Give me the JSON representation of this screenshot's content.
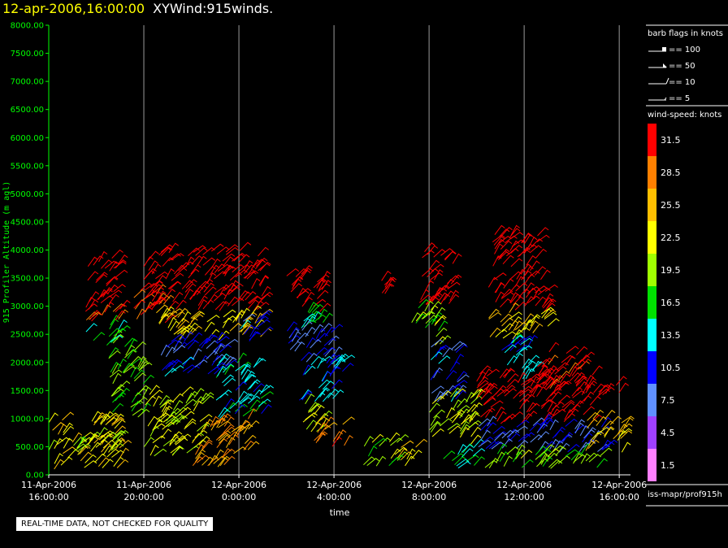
{
  "header": {
    "datetime": "12-apr-2006,16:00:00",
    "plot_name": "XYWind:915winds."
  },
  "legend": {
    "flags_title": "barb flags in knots",
    "flags": [
      "== 100",
      "== 50",
      "== 10",
      "== 5"
    ],
    "colorbar_title": "wind-speed: knots",
    "bins": [
      {
        "label": "31.5",
        "color": "#ff0000"
      },
      {
        "label": "28.5",
        "color": "#ff8000"
      },
      {
        "label": "25.5",
        "color": "#ffc000"
      },
      {
        "label": "22.5",
        "color": "#ffff00"
      },
      {
        "label": "19.5",
        "color": "#a0ff00"
      },
      {
        "label": "16.5",
        "color": "#00e000"
      },
      {
        "label": "13.5",
        "color": "#00ffff"
      },
      {
        "label": "10.5",
        "color": "#0000ff"
      },
      {
        "label": "7.5",
        "color": "#6090ff"
      },
      {
        "label": "4.5",
        "color": "#a040ff"
      },
      {
        "label": "1.5",
        "color": "#ff80ff"
      }
    ],
    "footer": "iss-mapr/prof915h"
  },
  "notice": "REAL-TIME DATA, NOT CHECKED FOR QUALITY",
  "chart_data": {
    "type": "scatter",
    "title": "12-apr-2006,16:00:00  XYWind:915winds.",
    "xlabel": "time",
    "ylabel": "915 Profiler Altitude (m agl)",
    "x_ticks": [
      "11-Apr-2006 16:00:00",
      "11-Apr-2006 20:00:00",
      "12-Apr-2006 0:00:00",
      "12-Apr-2006 4:00:00",
      "12-Apr-2006 8:00:00",
      "12-Apr-2006 12:00:00",
      "12-Apr-2006 16:00:00"
    ],
    "xlim_hours": [
      0,
      24.2
    ],
    "ylim": [
      0,
      8000
    ],
    "y_ticks": [
      "0.00",
      "500.00",
      "1000.00",
      "1500.00",
      "2000.00",
      "2500.00",
      "3000.00",
      "3500.00",
      "4000.00",
      "4500.00",
      "5000.00",
      "5500.00",
      "6000.00",
      "6500.00",
      "7000.00",
      "7500.00",
      "8000.00"
    ],
    "grid": "vertical",
    "legend": "right",
    "series_description_note": "",
    "regions": [
      {
        "x0": 0.0,
        "x1": 3.0,
        "y0": 100,
        "y1": 1000,
        "speed": 24
      },
      {
        "x0": 0.0,
        "x1": 3.0,
        "y0": 400,
        "y1": 700,
        "speed": 20
      },
      {
        "x0": 1.5,
        "x1": 3.0,
        "y0": 2300,
        "y1": 2700,
        "speed": 16
      },
      {
        "x0": 1.5,
        "x1": 3.0,
        "y0": 2700,
        "y1": 3900,
        "speed": 32
      },
      {
        "x0": 2.5,
        "x1": 4.0,
        "y0": 1000,
        "y1": 2300,
        "speed": 18
      },
      {
        "x0": 3.5,
        "x1": 5.0,
        "y0": 2700,
        "y1": 3300,
        "speed": 30
      },
      {
        "x0": 4.0,
        "x1": 9.0,
        "y0": 2900,
        "y1": 4000,
        "speed": 33
      },
      {
        "x0": 4.5,
        "x1": 9.0,
        "y0": 2400,
        "y1": 2900,
        "speed": 24
      },
      {
        "x0": 4.5,
        "x1": 7.5,
        "y0": 1700,
        "y1": 2400,
        "speed": 10
      },
      {
        "x0": 4.0,
        "x1": 6.5,
        "y0": 300,
        "y1": 1500,
        "speed": 21
      },
      {
        "x0": 6.0,
        "x1": 7.5,
        "y0": 100,
        "y1": 900,
        "speed": 27
      },
      {
        "x0": 7.0,
        "x1": 9.0,
        "y0": 1000,
        "y1": 2000,
        "speed": 14
      },
      {
        "x0": 7.0,
        "x1": 8.5,
        "y0": 300,
        "y1": 1000,
        "speed": 27
      },
      {
        "x0": 8.0,
        "x1": 9.0,
        "y0": 2300,
        "y1": 2800,
        "speed": 11
      },
      {
        "x0": 10.0,
        "x1": 11.5,
        "y0": 2900,
        "y1": 3600,
        "speed": 33
      },
      {
        "x0": 10.0,
        "x1": 12.0,
        "y0": 2600,
        "y1": 2900,
        "speed": 16
      },
      {
        "x0": 10.0,
        "x1": 12.0,
        "y0": 2000,
        "y1": 2600,
        "speed": 9
      },
      {
        "x0": 10.5,
        "x1": 12.0,
        "y0": 1300,
        "y1": 2000,
        "speed": 12
      },
      {
        "x0": 10.5,
        "x1": 11.5,
        "y0": 700,
        "y1": 1300,
        "speed": 21
      },
      {
        "x0": 11.0,
        "x1": 12.5,
        "y0": 500,
        "y1": 900,
        "speed": 28
      },
      {
        "x0": 12.0,
        "x1": 12.5,
        "y0": 1700,
        "y1": 2100,
        "speed": 14
      },
      {
        "x0": 13.2,
        "x1": 14.7,
        "y0": 150,
        "y1": 600,
        "speed": 19
      },
      {
        "x0": 14.5,
        "x1": 15.5,
        "y0": 150,
        "y1": 500,
        "speed": 25
      },
      {
        "x0": 14.0,
        "x1": 14.2,
        "y0": 3200,
        "y1": 3500,
        "speed": 33
      },
      {
        "x0": 15.5,
        "x1": 17.0,
        "y0": 3000,
        "y1": 4000,
        "speed": 33
      },
      {
        "x0": 15.2,
        "x1": 16.5,
        "y0": 2300,
        "y1": 3000,
        "speed": 20
      },
      {
        "x0": 16.0,
        "x1": 17.2,
        "y0": 1300,
        "y1": 2300,
        "speed": 10
      },
      {
        "x0": 16.0,
        "x1": 18.0,
        "y0": 500,
        "y1": 1400,
        "speed": 21
      },
      {
        "x0": 16.5,
        "x1": 18.0,
        "y0": 100,
        "y1": 500,
        "speed": 15
      },
      {
        "x0": 18.5,
        "x1": 21.0,
        "y0": 2900,
        "y1": 4300,
        "speed": 33
      },
      {
        "x0": 18.5,
        "x1": 21.0,
        "y0": 2400,
        "y1": 2900,
        "speed": 24
      },
      {
        "x0": 19.0,
        "x1": 20.5,
        "y0": 1700,
        "y1": 2400,
        "speed": 13
      },
      {
        "x0": 18.0,
        "x1": 23.0,
        "y0": 900,
        "y1": 1800,
        "speed": 33
      },
      {
        "x0": 18.0,
        "x1": 23.5,
        "y0": 400,
        "y1": 900,
        "speed": 9
      },
      {
        "x0": 18.0,
        "x1": 23.5,
        "y0": 100,
        "y1": 400,
        "speed": 19
      },
      {
        "x0": 22.5,
        "x1": 24.0,
        "y0": 1300,
        "y1": 1600,
        "speed": 33
      },
      {
        "x0": 22.5,
        "x1": 24.2,
        "y0": 400,
        "y1": 1000,
        "speed": 25
      },
      {
        "x0": 20.5,
        "x1": 22.5,
        "y0": 1500,
        "y1": 2200,
        "speed": 32
      }
    ]
  }
}
